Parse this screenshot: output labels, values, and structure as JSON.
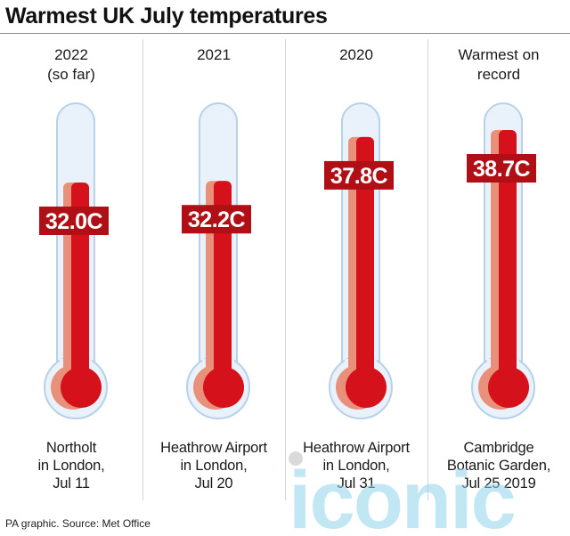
{
  "title": "Warmest UK July temperatures",
  "footer": "PA graphic. Source: Met Office",
  "watermark_text": "iconic",
  "colors": {
    "mercury": "#d5111b",
    "mercury_shadow": "#e8907a",
    "tube_fill": "#e9f2fa",
    "tube_outline": "#b7d1e8",
    "label_bg": "#b00f15",
    "watermark": "#8fd2ec"
  },
  "chart_data": {
    "type": "bar",
    "title": "Warmest UK July temperatures",
    "unit": "C",
    "categories": [
      "2022 (so far)",
      "2021",
      "2020",
      "Warmest on record"
    ],
    "values": [
      32.0,
      32.2,
      37.8,
      38.7
    ],
    "value_labels": [
      "32.0C",
      "32.2C",
      "37.8C",
      "38.7C"
    ],
    "columns": [
      {
        "header": [
          "2022",
          "(so far)"
        ],
        "value": 32.0,
        "label": "32.0C",
        "caption": [
          "Northolt",
          "in London,",
          "Jul 11"
        ]
      },
      {
        "header": [
          "2021"
        ],
        "value": 32.2,
        "label": "32.2C",
        "caption": [
          "Heathrow Airport",
          "in London,",
          "Jul 20"
        ]
      },
      {
        "header": [
          "2020"
        ],
        "value": 37.8,
        "label": "37.8C",
        "caption": [
          "Heathrow Airport",
          "in London,",
          "Jul 31"
        ]
      },
      {
        "header": [
          "Warmest on",
          "record"
        ],
        "value": 38.7,
        "label": "38.7C",
        "caption": [
          "Cambridge",
          "Botanic Garden,",
          "Jul 25 2019"
        ]
      }
    ]
  }
}
